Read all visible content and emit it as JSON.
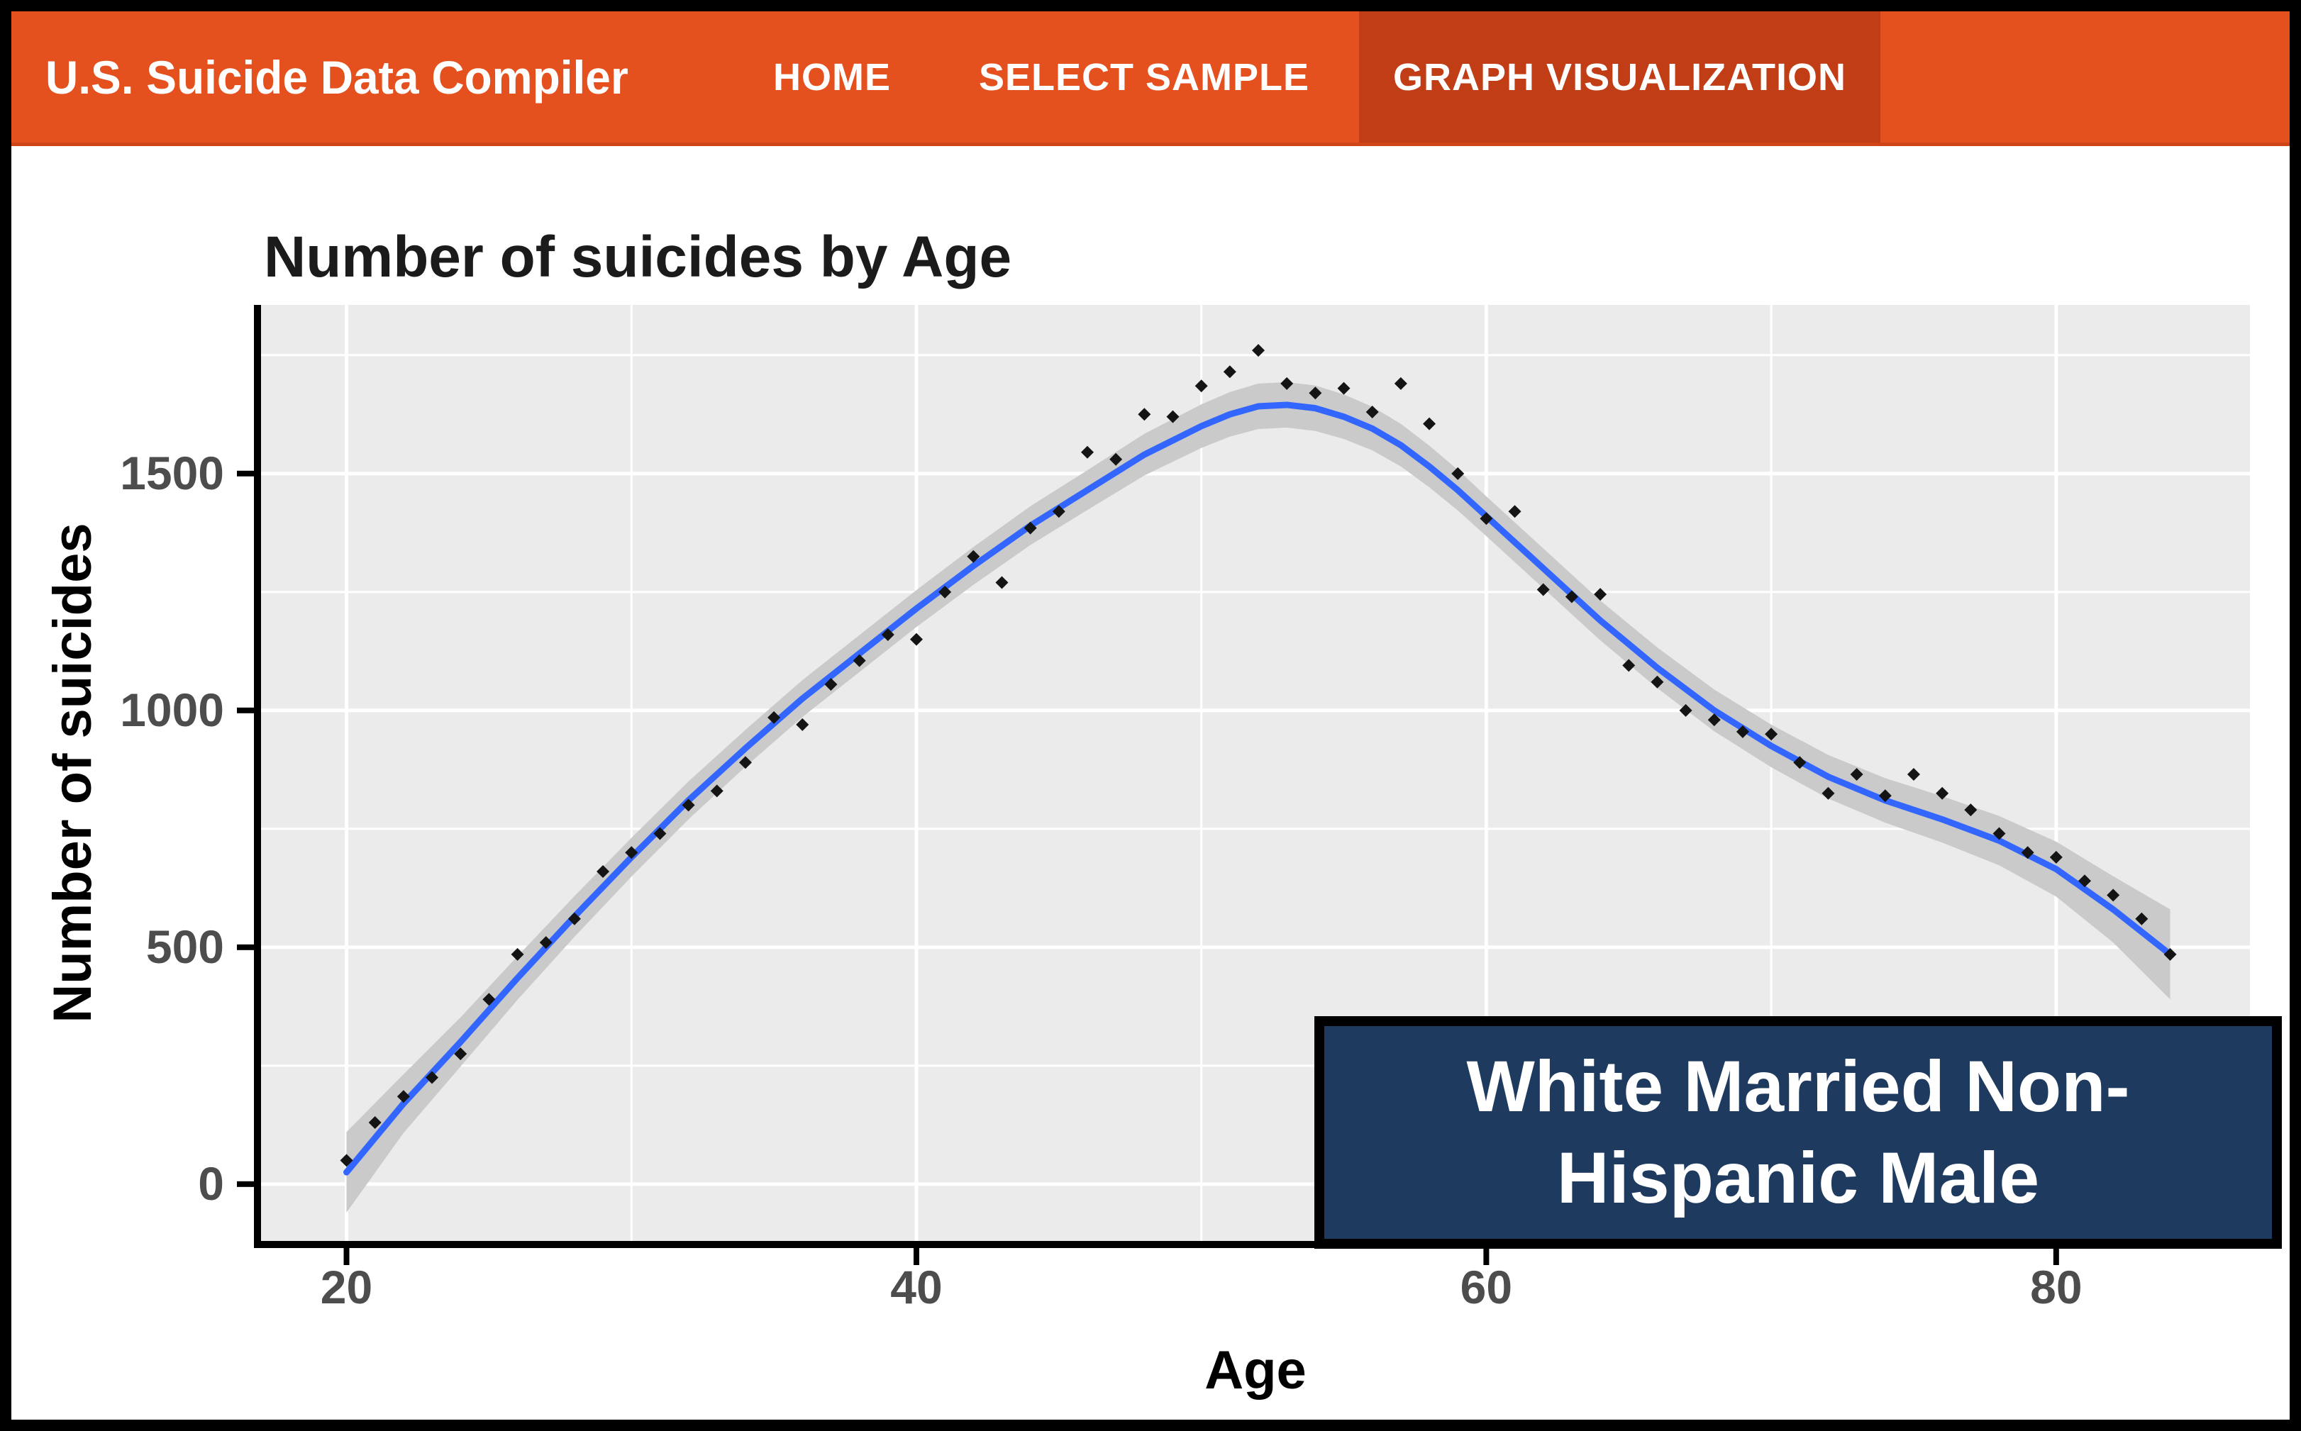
{
  "navbar": {
    "brand": "U.S. Suicide Data Compiler",
    "items": [
      {
        "label": "HOME",
        "active": false
      },
      {
        "label": "SELECT SAMPLE",
        "active": false
      },
      {
        "label": "GRAPH VISUALIZATION",
        "active": true
      }
    ]
  },
  "overlay": {
    "lines": [
      "White Married Non-",
      "Hispanic Male"
    ],
    "full_label": "White Married Non-Hispanic Male"
  },
  "colors": {
    "navbar_bg": "#E4511E",
    "navbar_active_bg": "#C13D15",
    "navbar_text": "#FFFFFF",
    "overlay_bg": "#1E3A5F",
    "overlay_border": "#000000",
    "overlay_text": "#FFFFFF",
    "panel_bg": "#EBEBEB",
    "grid": "#FFFFFF",
    "smooth_line": "#3366FF",
    "confidence_band": "#CACACA",
    "point": "#141414",
    "axis_line": "#000000",
    "tick_text": "#4D4D4D",
    "title_text": "#1B1B1B"
  },
  "chart_data": {
    "type": "scatter",
    "title": "Number of suicides by Age",
    "xlabel": "Age",
    "ylabel": "Number of suicides",
    "x_ticks": [
      20,
      40,
      60,
      80
    ],
    "x_minor_ticks": [
      30,
      50,
      70
    ],
    "y_ticks": [
      0,
      500,
      1000,
      1500
    ],
    "y_minor_ticks": [
      250,
      750,
      1250,
      1750
    ],
    "xlim": [
      17,
      86.8
    ],
    "ylim": [
      -120,
      1856
    ],
    "grid": true,
    "legend_position": "none",
    "series": [
      {
        "name": "observed",
        "type": "scatter",
        "x": [
          20,
          21,
          22,
          23,
          24,
          25,
          26,
          27,
          28,
          29,
          30,
          31,
          32,
          33,
          34,
          35,
          36,
          37,
          38,
          39,
          40,
          41,
          42,
          43,
          44,
          45,
          46,
          47,
          48,
          49,
          50,
          51,
          52,
          53,
          54,
          55,
          56,
          57,
          58,
          59,
          60,
          61,
          62,
          63,
          64,
          65,
          66,
          67,
          68,
          69,
          70,
          71,
          72,
          73,
          74,
          75,
          76,
          77,
          78,
          79,
          80,
          81,
          82,
          83,
          84
        ],
        "y": [
          50,
          130,
          185,
          225,
          275,
          390,
          485,
          510,
          560,
          660,
          700,
          740,
          800,
          830,
          890,
          985,
          970,
          1055,
          1105,
          1160,
          1150,
          1250,
          1325,
          1270,
          1385,
          1420,
          1545,
          1530,
          1625,
          1620,
          1685,
          1715,
          1760,
          1690,
          1670,
          1680,
          1630,
          1690,
          1605,
          1500,
          1405,
          1420,
          1255,
          1240,
          1245,
          1095,
          1060,
          1000,
          980,
          955,
          950,
          890,
          825,
          865,
          820,
          865,
          825,
          790,
          740,
          700,
          690,
          640,
          610,
          560,
          485
        ]
      },
      {
        "name": "loess_smooth",
        "type": "line",
        "x": [
          20,
          22,
          24,
          26,
          28,
          30,
          32,
          34,
          36,
          38,
          40,
          42,
          44,
          46,
          48,
          50,
          51,
          52,
          53,
          54,
          55,
          56,
          57,
          58,
          59,
          60,
          62,
          64,
          66,
          68,
          70,
          72,
          74,
          76,
          78,
          80,
          82,
          84
        ],
        "y": [
          25,
          170,
          300,
          435,
          565,
          690,
          810,
          920,
          1025,
          1120,
          1215,
          1305,
          1390,
          1465,
          1540,
          1600,
          1625,
          1642,
          1645,
          1638,
          1620,
          1595,
          1560,
          1515,
          1465,
          1410,
          1300,
          1190,
          1090,
          1000,
          925,
          860,
          810,
          770,
          725,
          665,
          580,
          485
        ],
        "band_halfwidth": [
          85,
          62,
          52,
          46,
          43,
          41,
          40,
          39,
          39,
          39,
          39,
          40,
          41,
          42,
          44,
          46,
          47,
          48,
          48,
          48,
          47,
          46,
          45,
          44,
          43,
          42,
          42,
          42,
          43,
          44,
          45,
          46,
          47,
          49,
          52,
          58,
          70,
          95
        ]
      }
    ]
  }
}
